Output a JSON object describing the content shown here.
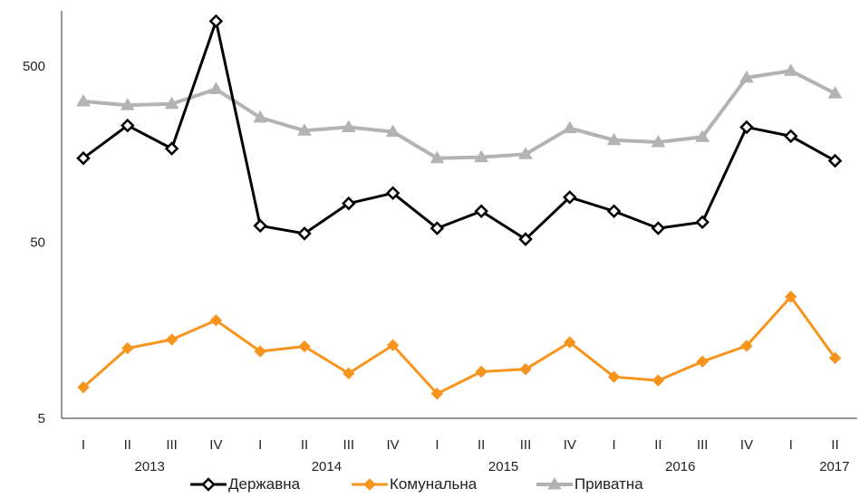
{
  "chart_data": {
    "type": "line",
    "y_scale": "log",
    "ylim": [
      5,
      1000
    ],
    "y_ticks": [
      "5",
      "50",
      "500"
    ],
    "y_tick_values": [
      5,
      50,
      500
    ],
    "grid": false,
    "legend_position": "bottom",
    "categories": [
      "I",
      "II",
      "III",
      "IV",
      "I",
      "II",
      "III",
      "IV",
      "I",
      "II",
      "III",
      "IV",
      "I",
      "II",
      "III",
      "IV",
      "I",
      "II"
    ],
    "year_labels": [
      {
        "label": "2013",
        "start_index": 0,
        "end_index": 3
      },
      {
        "label": "2014",
        "start_index": 4,
        "end_index": 7
      },
      {
        "label": "2015",
        "start_index": 8,
        "end_index": 11
      },
      {
        "label": "2016",
        "start_index": 12,
        "end_index": 15
      },
      {
        "label": "2017",
        "start_index": 16,
        "end_index": 17
      }
    ],
    "series": [
      {
        "name": "Державна",
        "color": "#000000",
        "marker": "diamond-open",
        "values": [
          150,
          230,
          170,
          900,
          62,
          56,
          83,
          95,
          60,
          75,
          52,
          90,
          75,
          60,
          65,
          225,
          200,
          145
        ]
      },
      {
        "name": "Комунальна",
        "color": "#f7941d",
        "marker": "diamond-filled",
        "values": [
          7.5,
          12.5,
          14,
          18,
          12,
          12.8,
          9,
          13,
          6.9,
          9.2,
          9.5,
          13.5,
          8.6,
          8.2,
          10.5,
          12.9,
          24.5,
          11
        ]
      },
      {
        "name": "Приватна",
        "color": "#b3b3b3",
        "marker": "triangle",
        "values": [
          315,
          300,
          305,
          370,
          255,
          215,
          225,
          212,
          150,
          152,
          158,
          222,
          190,
          185,
          198,
          430,
          470,
          350
        ]
      }
    ]
  }
}
